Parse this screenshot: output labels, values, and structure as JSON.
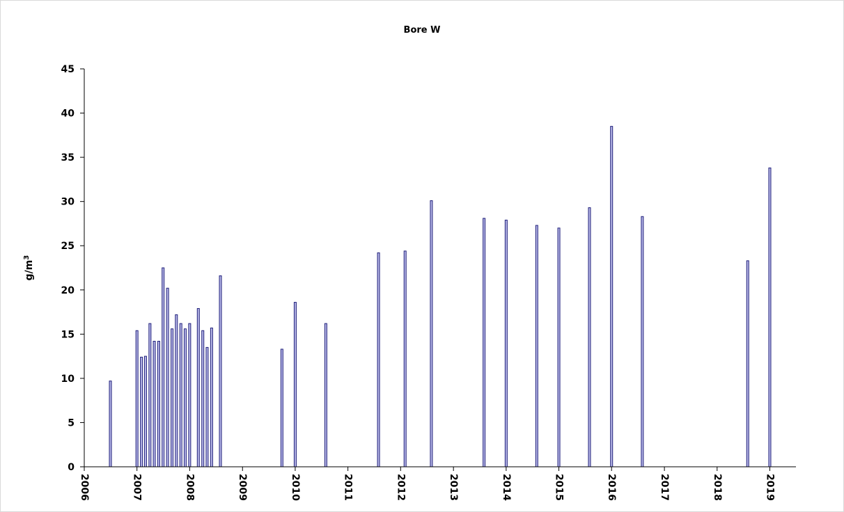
{
  "chart_data": {
    "type": "bar",
    "title": "Bore W",
    "xlabel": "",
    "ylabel": "g/m",
    "ylabel_superscript": "3",
    "ylim": [
      0,
      45
    ],
    "yticks": [
      0,
      5,
      10,
      15,
      20,
      25,
      30,
      35,
      40,
      45
    ],
    "xlim": [
      "2006-01-01",
      "2019-07-01"
    ],
    "xtick_labels": [
      "2006",
      "2007",
      "2008",
      "2009",
      "2010",
      "2011",
      "2012",
      "2013",
      "2014",
      "2015",
      "2016",
      "2017",
      "2018",
      "2019"
    ],
    "grid": false,
    "legend": "none",
    "bar_color": "#1f1f7a",
    "bar_fill": "#b8b8e8",
    "series": [
      {
        "points": [
          {
            "date": "2006-07-01",
            "value": 9.7
          },
          {
            "date": "2007-01-01",
            "value": 15.4
          },
          {
            "date": "2007-02-01",
            "value": 12.4
          },
          {
            "date": "2007-03-01",
            "value": 12.5
          },
          {
            "date": "2007-04-01",
            "value": 16.2
          },
          {
            "date": "2007-05-01",
            "value": 14.2
          },
          {
            "date": "2007-06-01",
            "value": 14.2
          },
          {
            "date": "2007-07-01",
            "value": 22.5
          },
          {
            "date": "2007-08-01",
            "value": 20.2
          },
          {
            "date": "2007-09-01",
            "value": 15.6
          },
          {
            "date": "2007-10-01",
            "value": 17.2
          },
          {
            "date": "2007-11-01",
            "value": 16.2
          },
          {
            "date": "2007-12-01",
            "value": 15.6
          },
          {
            "date": "2008-01-01",
            "value": 16.2
          },
          {
            "date": "2008-03-01",
            "value": 17.9
          },
          {
            "date": "2008-04-01",
            "value": 15.4
          },
          {
            "date": "2008-05-01",
            "value": 13.5
          },
          {
            "date": "2008-06-01",
            "value": 15.7
          },
          {
            "date": "2008-08-01",
            "value": 21.6
          },
          {
            "date": "2009-10-01",
            "value": 13.3
          },
          {
            "date": "2010-01-01",
            "value": 18.6
          },
          {
            "date": "2010-08-01",
            "value": 16.2
          },
          {
            "date": "2011-08-01",
            "value": 24.2
          },
          {
            "date": "2012-02-01",
            "value": 24.4
          },
          {
            "date": "2012-08-01",
            "value": 30.1
          },
          {
            "date": "2013-08-01",
            "value": 28.1
          },
          {
            "date": "2014-01-01",
            "value": 27.9
          },
          {
            "date": "2014-08-01",
            "value": 27.3
          },
          {
            "date": "2015-01-01",
            "value": 27.0
          },
          {
            "date": "2015-08-01",
            "value": 29.3
          },
          {
            "date": "2016-01-01",
            "value": 38.5
          },
          {
            "date": "2016-08-01",
            "value": 28.3
          },
          {
            "date": "2018-08-01",
            "value": 23.3
          },
          {
            "date": "2019-01-01",
            "value": 33.8
          }
        ]
      }
    ]
  }
}
